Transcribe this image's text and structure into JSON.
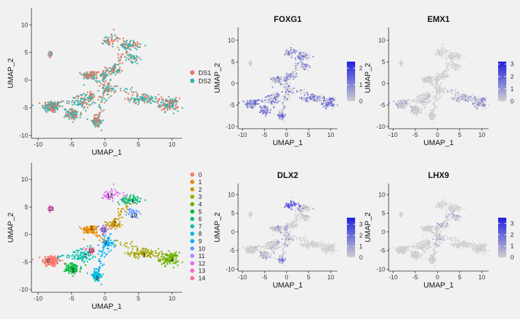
{
  "chart_data": [
    {
      "type": "scatter",
      "panel": "dataset",
      "xlabel": "UMAP_1",
      "ylabel": "UMAP_2",
      "xlim": [
        -11,
        11.5
      ],
      "ylim": [
        -10.5,
        13
      ],
      "xticks": [
        -10,
        -5,
        0,
        5,
        10
      ],
      "yticks": [
        -10,
        -5,
        0,
        5,
        10
      ],
      "legend_position": "right",
      "series": [
        {
          "name": "DS1",
          "color": "#e2735c"
        },
        {
          "name": "DS2",
          "color": "#2fb4ad"
        }
      ]
    },
    {
      "type": "scatter",
      "panel": "feature",
      "title": "FOXG1",
      "xlabel": "UMAP_1",
      "ylabel": "UMAP_2",
      "xlim": [
        -11,
        11.5
      ],
      "ylim": [
        -10.5,
        13
      ],
      "xticks": [
        -10,
        -5,
        0,
        5,
        10
      ],
      "yticks": [
        -10,
        -5,
        0,
        5,
        10
      ],
      "color_scale": {
        "ticks": [
          "2",
          "1",
          "0"
        ],
        "range": [
          0,
          2.4
        ],
        "low": "#cfcfcf",
        "high": "#1f1fe0"
      },
      "legend_position": "right"
    },
    {
      "type": "scatter",
      "panel": "feature",
      "title": "EMX1",
      "xlabel": "UMAP_1",
      "ylabel": "UMAP_2",
      "xlim": [
        -11,
        11.5
      ],
      "ylim": [
        -10.5,
        13
      ],
      "xticks": [
        -10,
        -5,
        0,
        5,
        10
      ],
      "yticks": [
        -10,
        -5,
        0,
        5,
        10
      ],
      "color_scale": {
        "ticks": [
          "3",
          "2",
          "1",
          "0"
        ],
        "range": [
          0,
          3.2
        ],
        "low": "#cfcfcf",
        "high": "#1f1fe0"
      },
      "legend_position": "right"
    },
    {
      "type": "scatter",
      "panel": "cluster",
      "xlabel": "UMAP_1",
      "ylabel": "UMAP_2",
      "xlim": [
        -11,
        11.5
      ],
      "ylim": [
        -10.5,
        13
      ],
      "xticks": [
        -10,
        -5,
        0,
        5,
        10
      ],
      "yticks": [
        -10,
        -5,
        0,
        5,
        10
      ],
      "legend_position": "right",
      "clusters": [
        {
          "name": "0",
          "color": "#f8766d",
          "label_x": -8.5,
          "label_y": -4.7
        },
        {
          "name": "1",
          "color": "#e58700",
          "label_x": -2.0,
          "label_y": 1.2
        },
        {
          "name": "2",
          "color": "#c99800",
          "label_x": 1.5,
          "label_y": 2.0
        },
        {
          "name": "3",
          "color": "#a3a500",
          "label_x": 5.8,
          "label_y": -3.7
        },
        {
          "name": "4",
          "color": "#6bb100",
          "label_x": 10.0,
          "label_y": -4.6
        },
        {
          "name": "5",
          "color": "#00ba38",
          "label_x": -4.8,
          "label_y": -6.5
        },
        {
          "name": "6",
          "color": "#00bf7d",
          "label_x": 4.2,
          "label_y": 6.0
        },
        {
          "name": "7",
          "color": "#00c0af",
          "label_x": -2.9,
          "label_y": -4.0
        },
        {
          "name": "8",
          "color": "#00bcd8",
          "label_x": -1.2,
          "label_y": -7.9
        },
        {
          "name": "9",
          "color": "#00b0f6",
          "label_x": 0.1,
          "label_y": -1.4
        },
        {
          "name": "10",
          "color": "#619cff",
          "label_x": 4.3,
          "label_y": 3.4
        },
        {
          "name": "11",
          "color": "#b983ff",
          "label_x": -0.2,
          "label_y": 0.9
        },
        {
          "name": "12",
          "color": "#e76bf3",
          "label_x": 0.7,
          "label_y": 7.1
        },
        {
          "name": "13",
          "color": "#fd61d1",
          "label_x": -8.1,
          "label_y": 4.7
        },
        {
          "name": "14",
          "color": "#ff67a4",
          "label_x": -2.1,
          "label_y": -2.9
        }
      ]
    },
    {
      "type": "scatter",
      "panel": "feature",
      "title": "DLX2",
      "xlabel": "UMAP_1",
      "ylabel": "UMAP_2",
      "xlim": [
        -11,
        11.5
      ],
      "ylim": [
        -10.5,
        13
      ],
      "xticks": [
        -10,
        -5,
        0,
        5,
        10
      ],
      "yticks": [
        -10,
        -5,
        0,
        5,
        10
      ],
      "color_scale": {
        "ticks": [
          "3",
          "2",
          "1",
          "0"
        ],
        "range": [
          0,
          3.6
        ],
        "low": "#cfcfcf",
        "high": "#1f1fe0"
      },
      "legend_position": "right"
    },
    {
      "type": "scatter",
      "panel": "feature",
      "title": "LHX9",
      "xlabel": "UMAP_1",
      "ylabel": "UMAP_2",
      "xlim": [
        -11,
        11.5
      ],
      "ylim": [
        -10.5,
        13
      ],
      "xticks": [
        -10,
        -5,
        0,
        5,
        10
      ],
      "yticks": [
        -10,
        -5,
        0,
        5,
        10
      ],
      "color_scale": {
        "ticks": [
          "3",
          "2",
          "1",
          "0"
        ],
        "range": [
          0,
          3.5
        ],
        "low": "#cfcfcf",
        "high": "#1f1fe0"
      },
      "legend_position": "right"
    }
  ]
}
